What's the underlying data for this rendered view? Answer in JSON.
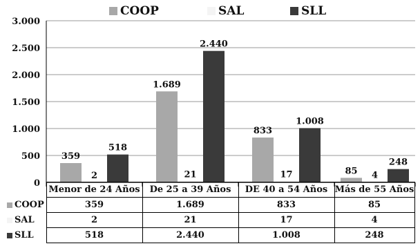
{
  "chart_data": {
    "type": "bar",
    "categories": [
      "Menor de 24 Años",
      "De 25 a 39 Años",
      "DE 40 a 54 Años",
      "Más de 55 Años"
    ],
    "series": [
      {
        "name": "COOP",
        "color": "#a8a8a8",
        "values": [
          359,
          1689,
          833,
          85
        ],
        "labels": [
          "359",
          "1.689",
          "833",
          "85"
        ]
      },
      {
        "name": "SAL",
        "color": "#f4f4f4",
        "values": [
          2,
          21,
          17,
          4
        ],
        "labels": [
          "2",
          "21",
          "17",
          "4"
        ]
      },
      {
        "name": "SLL",
        "color": "#3a3a3a",
        "values": [
          518,
          2440,
          1008,
          248
        ],
        "labels": [
          "518",
          "2.440",
          "1.008",
          "248"
        ]
      }
    ],
    "ylim": [
      0,
      3000
    ],
    "yticks": [
      0,
      500,
      1000,
      1500,
      2000,
      2500,
      3000
    ],
    "ytick_labels": [
      "0",
      "500",
      "1.000",
      "1.500",
      "2.000",
      "2.500",
      "3.000"
    ],
    "grid": true,
    "legend_position": "top",
    "data_table": true
  }
}
